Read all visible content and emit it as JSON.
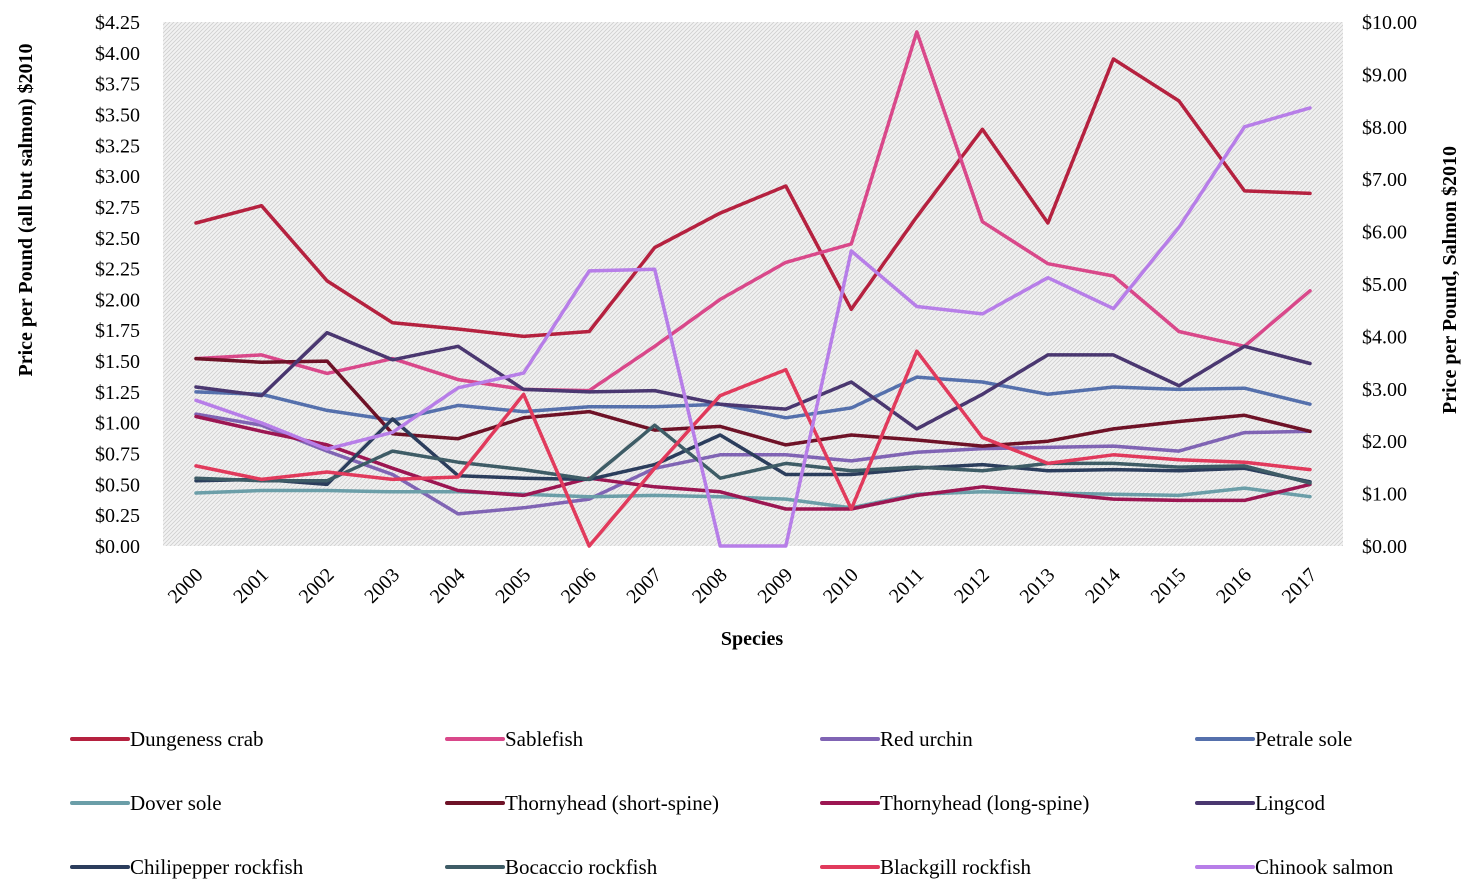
{
  "chart_data": {
    "type": "line",
    "xlabel": "Species",
    "ylabel_left": "Price per Pound (all but salmon) $2010",
    "ylabel_right": "Price per Pound, Salmon  $2010",
    "ylim_left": [
      0,
      4.25
    ],
    "ylim_right": [
      0,
      10
    ],
    "y_ticks_left": [
      "$0.00",
      "$0.25",
      "$0.50",
      "$0.75",
      "$1.00",
      "$1.25",
      "$1.50",
      "$1.75",
      "$2.00",
      "$2.25",
      "$2.50",
      "$2.75",
      "$3.00",
      "$3.25",
      "$3.50",
      "$3.75",
      "$4.00",
      "$4.25"
    ],
    "y_ticks_right": [
      "$0.00",
      "$1.00",
      "$2.00",
      "$3.00",
      "$4.00",
      "$5.00",
      "$6.00",
      "$7.00",
      "$8.00",
      "$9.00",
      "$10.00"
    ],
    "x": [
      "2000",
      "2001",
      "2002",
      "2003",
      "2004",
      "2005",
      "2006",
      "2007",
      "2008",
      "2009",
      "2010",
      "2011",
      "2012",
      "2013",
      "2014",
      "2015",
      "2016",
      "2017"
    ],
    "grid": false,
    "plot_background": "hatched light gray",
    "legend_position": "bottom",
    "series": [
      {
        "name": "Dungeness crab",
        "color": "#b5213f",
        "axis": "left",
        "values": [
          2.62,
          2.76,
          2.15,
          1.81,
          1.76,
          1.7,
          1.74,
          2.42,
          2.7,
          2.92,
          1.92,
          2.67,
          3.38,
          2.62,
          3.95,
          3.61,
          2.88,
          2.86
        ]
      },
      {
        "name": "Sablefish",
        "color": "#d9488a",
        "axis": "left",
        "values": [
          1.52,
          1.55,
          1.4,
          1.52,
          1.35,
          1.27,
          1.26,
          1.62,
          2.0,
          2.3,
          2.45,
          4.17,
          2.63,
          2.29,
          2.19,
          1.74,
          1.62,
          2.07
        ]
      },
      {
        "name": "Red urchin",
        "color": "#8064b4",
        "axis": "left",
        "values": [
          1.07,
          0.98,
          0.77,
          0.58,
          0.26,
          0.31,
          0.38,
          0.63,
          0.74,
          0.74,
          0.69,
          0.76,
          0.79,
          0.8,
          0.81,
          0.77,
          0.92,
          0.93
        ]
      },
      {
        "name": "Petrale sole",
        "color": "#5570ac",
        "axis": "left",
        "values": [
          1.25,
          1.23,
          1.1,
          1.02,
          1.14,
          1.09,
          1.13,
          1.13,
          1.15,
          1.04,
          1.12,
          1.37,
          1.33,
          1.23,
          1.29,
          1.27,
          1.28,
          1.15
        ]
      },
      {
        "name": "Dover sole",
        "color": "#6b9ea8",
        "axis": "left",
        "values": [
          0.43,
          0.45,
          0.45,
          0.44,
          0.44,
          0.42,
          0.4,
          0.41,
          0.4,
          0.38,
          0.31,
          0.42,
          0.44,
          0.43,
          0.42,
          0.41,
          0.47,
          0.4
        ]
      },
      {
        "name": "Thornyhead (short-spine)",
        "color": "#6e1227",
        "axis": "left",
        "values": [
          1.52,
          1.49,
          1.5,
          0.91,
          0.87,
          1.04,
          1.09,
          0.94,
          0.97,
          0.82,
          0.9,
          0.86,
          0.81,
          0.85,
          0.95,
          1.01,
          1.06,
          0.93
        ]
      },
      {
        "name": "Thornyhead (long-spine)",
        "color": "#9c1652",
        "axis": "left",
        "values": [
          1.05,
          0.93,
          0.82,
          0.63,
          0.45,
          0.41,
          0.55,
          0.48,
          0.44,
          0.3,
          0.3,
          0.41,
          0.48,
          0.43,
          0.38,
          0.37,
          0.37,
          0.5
        ]
      },
      {
        "name": "Lingcod",
        "color": "#4a3770",
        "axis": "left",
        "values": [
          1.29,
          1.22,
          1.73,
          1.51,
          1.62,
          1.27,
          1.25,
          1.26,
          1.15,
          1.11,
          1.33,
          0.95,
          1.23,
          1.55,
          1.55,
          1.3,
          1.62,
          1.48
        ]
      },
      {
        "name": "Chilipepper rockfish",
        "color": "#2b3d5c",
        "axis": "left",
        "values": [
          0.53,
          0.54,
          0.5,
          1.03,
          0.57,
          0.55,
          0.54,
          0.66,
          0.9,
          0.58,
          0.58,
          0.63,
          0.66,
          0.61,
          0.62,
          0.61,
          0.63,
          0.52
        ]
      },
      {
        "name": "Bocaccio rockfish",
        "color": "#3e5c66",
        "axis": "left",
        "values": [
          0.55,
          0.53,
          0.53,
          0.77,
          0.68,
          0.62,
          0.54,
          0.98,
          0.55,
          0.67,
          0.61,
          0.64,
          0.61,
          0.67,
          0.67,
          0.64,
          0.65,
          0.51
        ]
      },
      {
        "name": "Blackgill rockfish",
        "color": "#e13a5c",
        "axis": "left",
        "values": [
          0.65,
          0.54,
          0.6,
          0.54,
          0.56,
          1.23,
          0.0,
          0.63,
          1.22,
          1.43,
          0.3,
          1.58,
          0.88,
          0.67,
          0.74,
          0.7,
          0.68,
          0.62
        ]
      },
      {
        "name": "Chinook salmon",
        "color": "#b77ee8",
        "axis": "right",
        "values": [
          2.78,
          2.35,
          1.85,
          2.17,
          3.02,
          3.3,
          5.25,
          5.28,
          0.0,
          0.0,
          5.63,
          4.57,
          4.43,
          5.12,
          4.53,
          6.08,
          8.0,
          8.36
        ]
      }
    ]
  }
}
